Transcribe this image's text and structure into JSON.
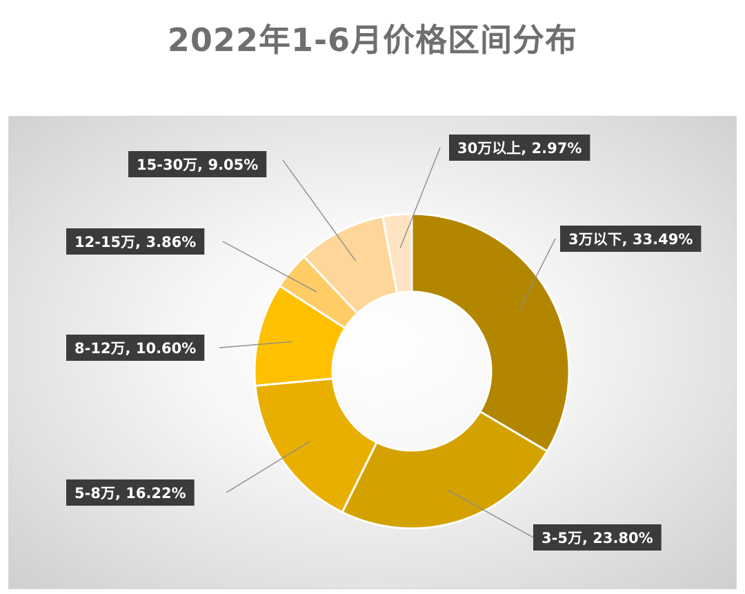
{
  "chart_data": {
    "type": "pie",
    "subtype": "donut",
    "title": "2022年1-6月价格区间分布",
    "slices": [
      {
        "name": "3万以下",
        "value": 33.49,
        "label": "3万以下, 33.49%",
        "color": "#B38600"
      },
      {
        "name": "3-5万",
        "value": 23.8,
        "label": "3-5万, 23.80%",
        "color": "#D4A200"
      },
      {
        "name": "5-8万",
        "value": 16.22,
        "label": "5-8万, 16.22%",
        "color": "#E8AF00"
      },
      {
        "name": "8-12万",
        "value": 10.6,
        "label": "8-12万, 10.60%",
        "color": "#FFC000"
      },
      {
        "name": "12-15万",
        "value": 3.86,
        "label": "12-15万, 3.86%",
        "color": "#FFCC66"
      },
      {
        "name": "15-30万",
        "value": 9.05,
        "label": "15-30万, 9.05%",
        "color": "#FFD699"
      },
      {
        "name": "30万以上",
        "value": 2.97,
        "label": "30万以上, 2.97%",
        "color": "#FFE4C4"
      }
    ],
    "legend": "none",
    "data_labels": "callout boxes with leader lines"
  }
}
